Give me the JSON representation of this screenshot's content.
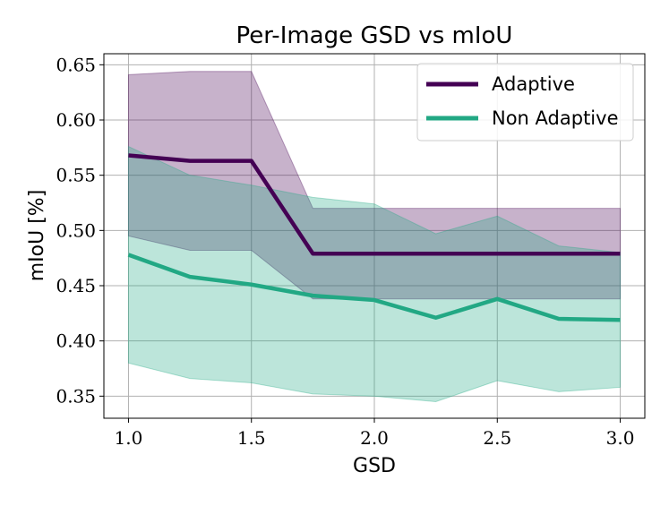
{
  "chart_data": {
    "type": "line",
    "title": "Per-Image GSD vs mIoU",
    "xlabel": "GSD",
    "ylabel": "mIoU [%]",
    "xlim": [
      0.9,
      3.1
    ],
    "ylim": [
      0.33,
      0.66
    ],
    "xticks": [
      1.0,
      1.5,
      2.0,
      2.5,
      3.0
    ],
    "xtick_labels": [
      "1.0",
      "1.5",
      "2.0",
      "2.5",
      "3.0"
    ],
    "yticks": [
      0.35,
      0.4,
      0.45,
      0.5,
      0.55,
      0.6,
      0.65
    ],
    "ytick_labels": [
      "0.35",
      "0.40",
      "0.45",
      "0.50",
      "0.55",
      "0.60",
      "0.65"
    ],
    "grid": true,
    "legend_position": "top-right",
    "x": [
      1.0,
      1.25,
      1.5,
      1.75,
      2.0,
      2.25,
      2.5,
      2.75,
      3.0
    ],
    "series": [
      {
        "name": "Adaptive",
        "color": "#440154",
        "values": [
          0.568,
          0.563,
          0.563,
          0.479,
          0.479,
          0.479,
          0.479,
          0.479,
          0.479
        ],
        "band_lower": [
          0.495,
          0.482,
          0.482,
          0.438,
          0.438,
          0.438,
          0.438,
          0.438,
          0.438
        ],
        "band_upper": [
          0.641,
          0.644,
          0.644,
          0.52,
          0.52,
          0.52,
          0.52,
          0.52,
          0.52
        ]
      },
      {
        "name": "Non Adaptive",
        "color": "#22a884",
        "values": [
          0.478,
          0.458,
          0.451,
          0.441,
          0.437,
          0.421,
          0.438,
          0.42,
          0.419
        ],
        "band_lower": [
          0.38,
          0.366,
          0.362,
          0.352,
          0.35,
          0.345,
          0.364,
          0.354,
          0.358
        ],
        "band_upper": [
          0.576,
          0.55,
          0.541,
          0.53,
          0.524,
          0.497,
          0.513,
          0.486,
          0.48
        ]
      }
    ]
  }
}
